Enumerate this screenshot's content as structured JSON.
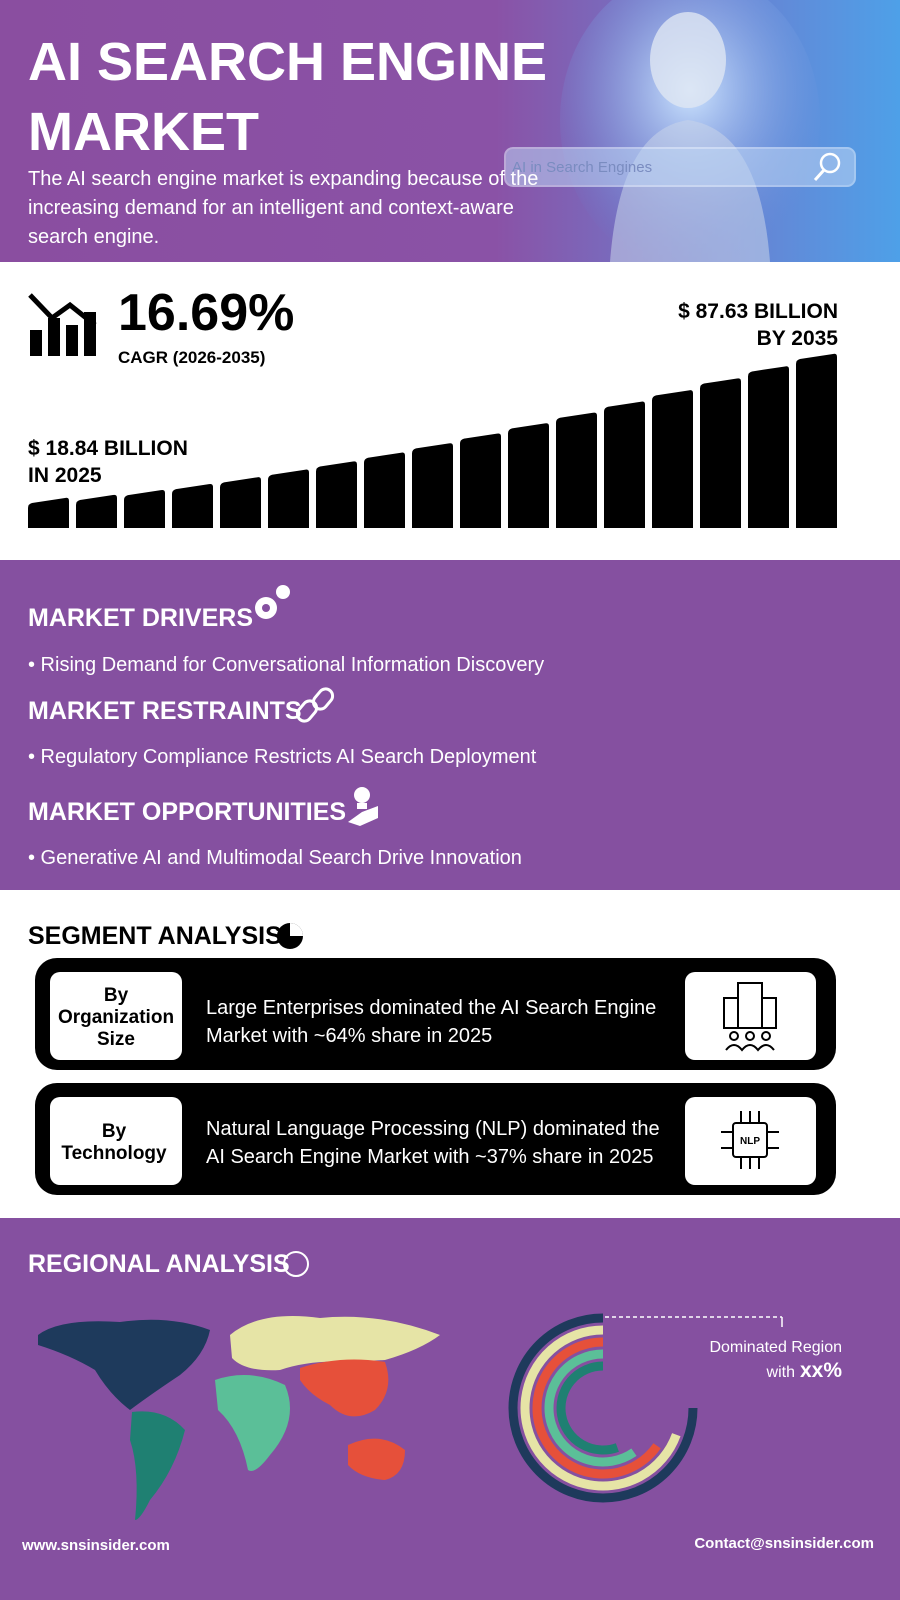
{
  "header": {
    "title_lines": [
      "AI SEARCH ENGINE",
      "MARKET"
    ],
    "description_lines": [
      "The AI search engine market is expanding because of the",
      "increasing demand for an intelligent and context-aware",
      "search engine."
    ],
    "search_text": "AI in Search Engines"
  },
  "stats": {
    "cagr": "16.69%",
    "cagr_label": "CAGR (2026-2035)",
    "start_lines": [
      "$ 18.84 BILLION",
      "IN 2025"
    ],
    "end_lines": [
      "$ 87.63 BILLION",
      "BY 2035"
    ]
  },
  "market": {
    "drivers": {
      "heading": "MARKET DRIVERS",
      "item": "• Rising Demand for Conversational Information Discovery"
    },
    "restraints": {
      "heading": "MARKET RESTRAINTS",
      "item": "• Regulatory Compliance Restricts AI Search Deployment"
    },
    "opportunities": {
      "heading": "MARKET OPPORTUNITIES",
      "item": "• Generative AI and Multimodal Search Drive Innovation"
    }
  },
  "segment": {
    "heading": "SEGMENT ANALYSIS",
    "rows": [
      {
        "label_lines": [
          "By",
          "Organization",
          "Size"
        ],
        "text_lines": [
          "Large Enterprises dominated the AI Search Engine",
          "Market with ~64% share in 2025"
        ]
      },
      {
        "label_lines": [
          "By",
          "Technology"
        ],
        "text_lines": [
          "Natural Language Processing (NLP) dominated the",
          "AI Search Engine Market with ~37% share in 2025"
        ],
        "icon_text": "NLP"
      }
    ]
  },
  "regional": {
    "heading": "REGIONAL ANALYSIS",
    "dominated": "Dominated Region",
    "with": "with",
    "share": "xx%"
  },
  "footer": {
    "website": "www.snsinsider.com",
    "contact": "Contact@snsinsider.com"
  }
}
